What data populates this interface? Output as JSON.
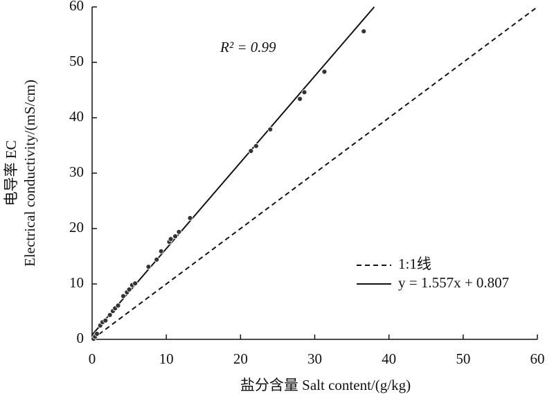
{
  "chart_data": {
    "type": "scatter",
    "x_label": "盐分含量 Salt content/(g/kg)",
    "y_label": [
      "电导率 EC",
      "Electrical conductivity/(mS/cm)"
    ],
    "xlim": [
      0,
      60
    ],
    "ylim": [
      0,
      60
    ],
    "xticks": [
      0,
      10,
      20,
      30,
      40,
      50,
      60
    ],
    "yticks": [
      0,
      10,
      20,
      30,
      40,
      50,
      60
    ],
    "annotation": "R² = 0.99",
    "legend": "lower right",
    "series": [
      {
        "color": "#333333",
        "x": [
          0.2,
          0.4,
          0.65,
          1.1,
          1.4,
          1.8,
          2.4,
          2.8,
          3.1,
          3.5,
          4.2,
          4.7,
          5.0,
          5.4,
          5.8,
          7.6,
          8.7,
          9.3,
          10.4,
          10.6,
          11.2,
          11.7,
          13.2,
          21.4,
          22.1,
          24.0,
          28.0,
          28.6,
          31.3,
          36.6
        ],
        "values": [
          0.1,
          0.5,
          1.0,
          2.5,
          3.1,
          3.4,
          4.4,
          5.1,
          5.6,
          6.1,
          7.8,
          8.5,
          9.0,
          9.8,
          10.1,
          13.1,
          14.4,
          15.9,
          17.6,
          18.1,
          18.6,
          19.4,
          21.9,
          34.0,
          34.9,
          37.9,
          43.4,
          44.6,
          48.3,
          55.6
        ]
      }
    ],
    "reference_lines": [
      {
        "name": "1:1线",
        "slope": 1,
        "intercept": 0,
        "style": "dashed",
        "color": "#111111"
      },
      {
        "name": "y = 1.557x + 0.807",
        "slope": 1.557,
        "intercept": 0.807,
        "style": "solid",
        "color": "#111111"
      }
    ]
  }
}
